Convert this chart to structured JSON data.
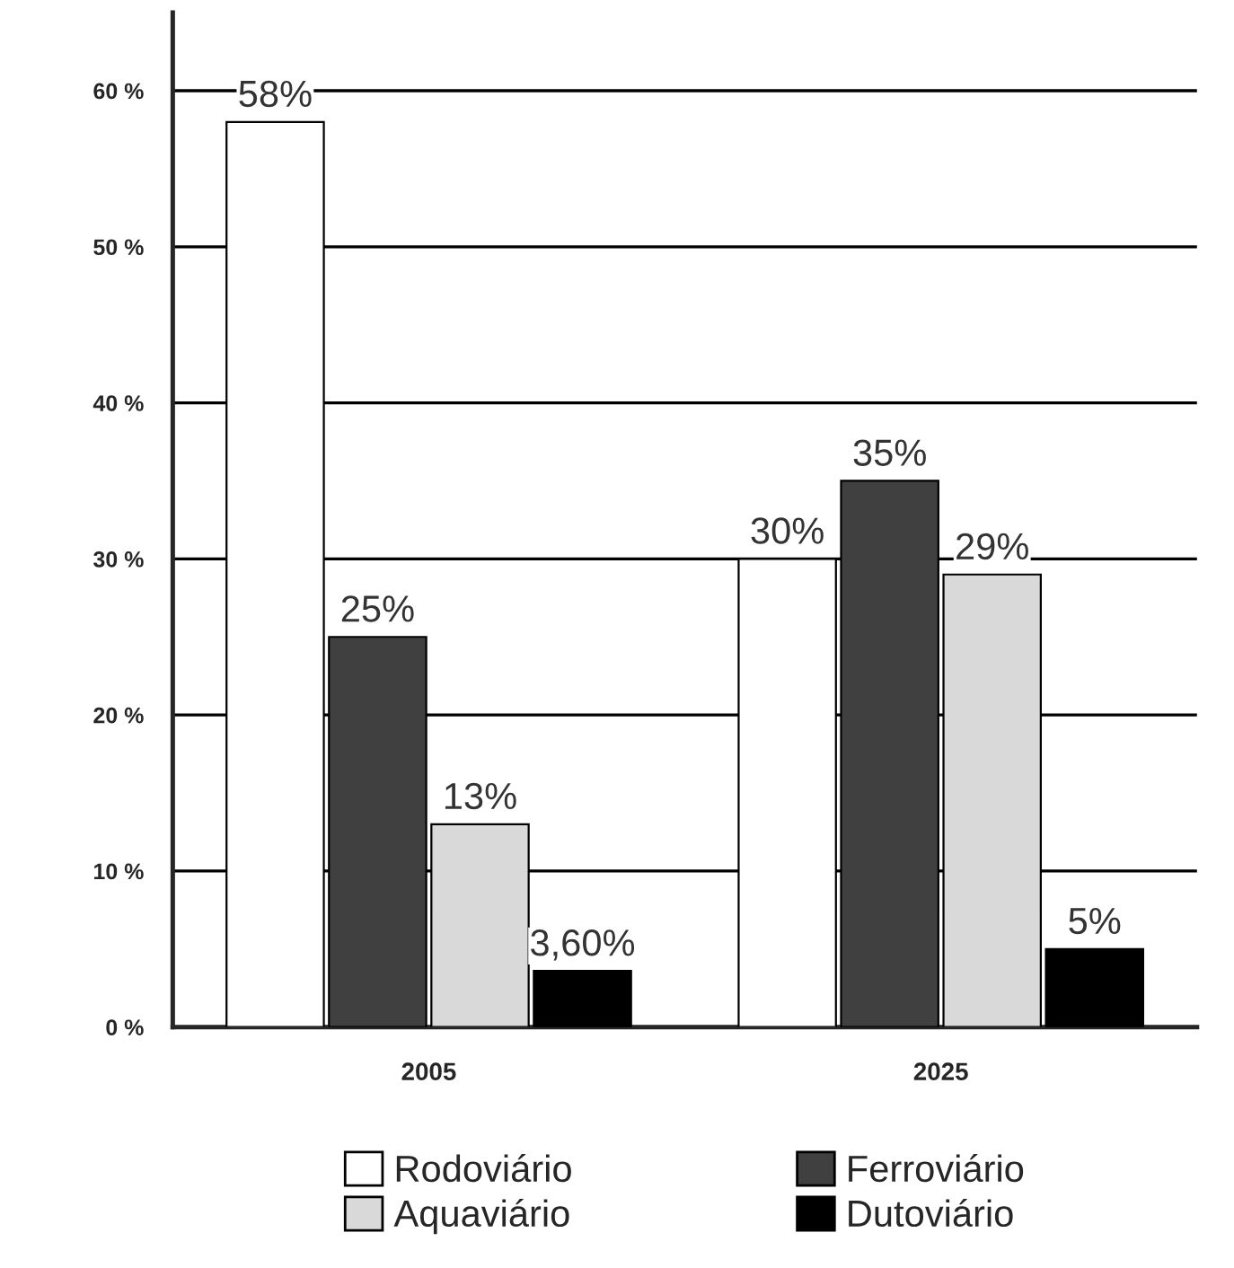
{
  "chart_data": {
    "type": "bar",
    "categories": [
      "2005",
      "2025"
    ],
    "series": [
      {
        "name": "Rodoviário",
        "color": "#ffffff",
        "values": [
          58,
          30
        ],
        "value_labels": [
          "58%",
          "30%"
        ]
      },
      {
        "name": "Ferroviário",
        "color": "#404040",
        "values": [
          25,
          35
        ],
        "value_labels": [
          "25%",
          "35%"
        ]
      },
      {
        "name": "Aquaviário",
        "color": "#d9d9d9",
        "values": [
          13,
          29
        ],
        "value_labels": [
          "13%",
          "29%"
        ]
      },
      {
        "name": "Dutoviário",
        "color": "#000000",
        "values": [
          3.6,
          5
        ],
        "value_labels": [
          "3,60%",
          "5%"
        ]
      }
    ],
    "ylim": [
      0,
      65
    ],
    "yticks": [
      {
        "value": 0,
        "label": "0 %"
      },
      {
        "value": 10,
        "label": "10 %"
      },
      {
        "value": 20,
        "label": "20 %"
      },
      {
        "value": 30,
        "label": "30 %"
      },
      {
        "value": 40,
        "label": "40 %"
      },
      {
        "value": 50,
        "label": "50 %"
      },
      {
        "value": 60,
        "label": "60 %"
      }
    ],
    "grid": "y",
    "legend": "bottom"
  }
}
